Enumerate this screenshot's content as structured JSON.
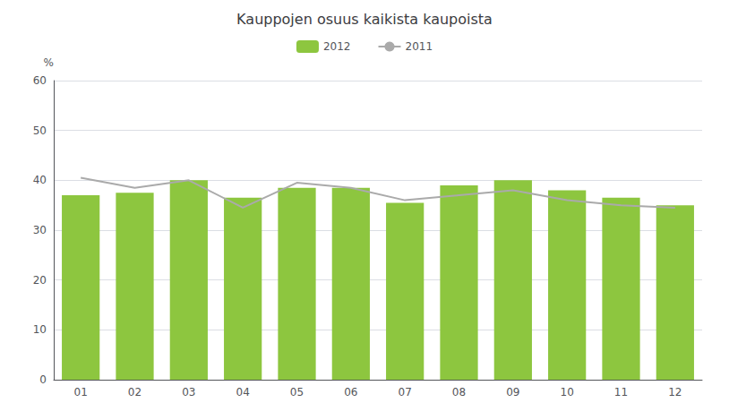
{
  "chart_data": {
    "type": "bar",
    "title": "Kauppojen osuus kaikista kaupoista",
    "ylabel": "%",
    "categories": [
      "01",
      "02",
      "03",
      "04",
      "05",
      "06",
      "07",
      "08",
      "09",
      "10",
      "11",
      "12"
    ],
    "series": [
      {
        "name": "2012",
        "type": "bar",
        "color": "#8dc63f",
        "values": [
          37,
          37.5,
          40,
          36.5,
          38.5,
          38.5,
          35.5,
          39,
          40,
          38,
          36.5,
          35
        ]
      },
      {
        "name": "2011",
        "type": "line",
        "color": "#aaaaaa",
        "values": [
          40.5,
          38.5,
          40,
          34.5,
          39.5,
          38.5,
          36,
          37,
          38,
          36,
          35,
          34.5
        ]
      }
    ],
    "ylim": [
      0,
      60
    ],
    "yticks": [
      0,
      10,
      20,
      30,
      40,
      50,
      60
    ],
    "grid": true,
    "legend": "top"
  }
}
